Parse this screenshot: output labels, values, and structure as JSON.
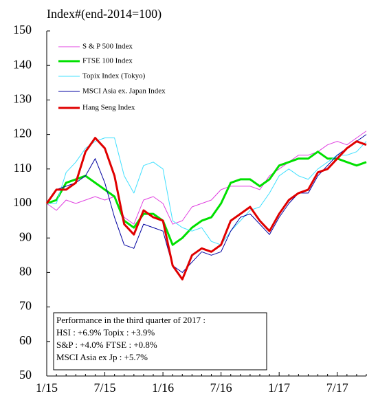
{
  "chart_data": {
    "type": "line",
    "title": "Index#(end-2014=100)",
    "categories": [
      "1/15",
      null,
      null,
      null,
      null,
      null,
      "7/15",
      null,
      null,
      null,
      null,
      null,
      "1/16",
      null,
      null,
      null,
      null,
      null,
      "7/16",
      null,
      null,
      null,
      null,
      null,
      "1/17",
      null,
      null,
      null,
      null,
      null,
      "7/17",
      null,
      null,
      null
    ],
    "series": [
      {
        "name": "S & P 500 Index",
        "color": "#e040e0",
        "values": [
          100,
          98,
          101,
          100,
          101,
          102,
          101,
          102,
          96,
          94,
          101,
          102,
          100,
          94,
          95,
          99,
          100,
          101,
          104,
          105,
          105,
          105,
          104,
          108,
          110,
          112,
          114,
          114,
          115,
          117,
          118,
          117,
          119,
          121
        ]
      },
      {
        "name": "FTSE 100 Index",
        "color": "#00e000",
        "values": [
          100,
          101,
          106,
          107,
          108,
          106,
          104,
          102,
          95,
          93,
          97,
          97,
          95,
          88,
          90,
          93,
          95,
          96,
          100,
          106,
          107,
          107,
          105,
          107,
          111,
          112,
          113,
          113,
          115,
          113,
          113,
          112,
          111,
          112
        ]
      },
      {
        "name": "Topix Index (Tokyo)",
        "color": "#40e0ff",
        "values": [
          100,
          100,
          109,
          112,
          116,
          118,
          119,
          119,
          108,
          103,
          111,
          112,
          110,
          95,
          93,
          92,
          93,
          89,
          88,
          92,
          95,
          98,
          99,
          103,
          108,
          110,
          108,
          107,
          110,
          112,
          114,
          114,
          115,
          118
        ]
      },
      {
        "name": "MSCI Asia ex. Japan Index",
        "color": "#0000a0",
        "values": [
          100,
          104,
          105,
          106,
          108,
          113,
          106,
          96,
          88,
          87,
          94,
          93,
          92,
          82,
          80,
          83,
          86,
          85,
          86,
          92,
          96,
          97,
          94,
          91,
          96,
          100,
          103,
          103,
          108,
          111,
          114,
          116,
          118,
          120
        ]
      },
      {
        "name": "Hang Seng Index",
        "color": "#e00000",
        "values": [
          100,
          104,
          104,
          106,
          115,
          119,
          116,
          108,
          94,
          91,
          98,
          96,
          95,
          82,
          78,
          85,
          87,
          86,
          88,
          95,
          97,
          99,
          95,
          92,
          97,
          101,
          103,
          104,
          109,
          110,
          113,
          116,
          118,
          117
        ]
      }
    ],
    "ylim": [
      50,
      150
    ],
    "yticks": [
      50,
      60,
      70,
      80,
      90,
      100,
      110,
      120,
      130,
      140,
      150
    ],
    "annotation": [
      "Performance  in the third quarter of 2017 :",
      "HSI : +6.9%       Topix : +3.9%",
      "S&P : +4.0%    FTSE : +0.8%",
      "MSCI Asia ex Jp : +5.7%"
    ]
  }
}
